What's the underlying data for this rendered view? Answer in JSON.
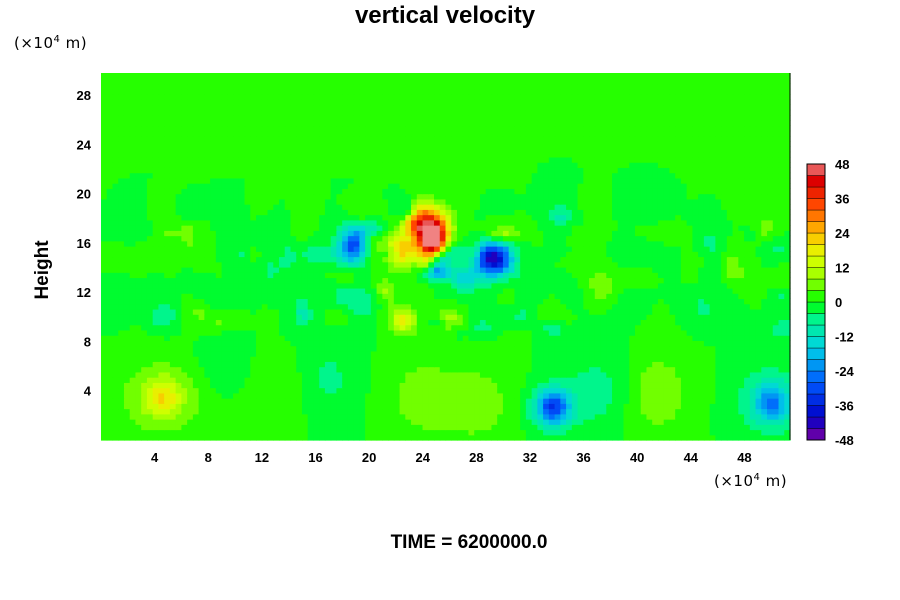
{
  "chart_data": {
    "type": "heatmap",
    "title": "vertical velocity",
    "xlabel": "",
    "ylabel": "Height",
    "x_unit": {
      "prefix": "(×10",
      "exp": "4",
      "suffix": " m)"
    },
    "y_unit": {
      "prefix": "(×10",
      "exp": "4",
      "suffix": " m)"
    },
    "xlim": [
      0,
      51.4
    ],
    "ylim": [
      0,
      29.8
    ],
    "xticks": [
      "4",
      "8",
      "12",
      "16",
      "20",
      "24",
      "28",
      "32",
      "36",
      "40",
      "44",
      "48"
    ],
    "xtick_values": [
      4,
      8,
      12,
      16,
      20,
      24,
      28,
      32,
      36,
      40,
      44,
      48
    ],
    "yticks": [
      "4",
      "8",
      "12",
      "16",
      "20",
      "24",
      "28"
    ],
    "ytick_values": [
      4,
      8,
      12,
      16,
      20,
      24,
      28
    ],
    "colorbar": {
      "min": -48,
      "max": 48,
      "step": 4,
      "tick_labels": [
        "48",
        "36",
        "24",
        "12",
        "0",
        "-12",
        "-24",
        "-36",
        "-48"
      ],
      "tick_values": [
        48,
        36,
        24,
        12,
        0,
        -12,
        -24,
        -36,
        -48
      ]
    },
    "field_features": [
      {
        "x": 24.7,
        "y": 16.4,
        "w_peak": 44,
        "note": "strong updraft core"
      },
      {
        "x": 24.0,
        "y": 17.8,
        "w_peak": 40
      },
      {
        "x": 22.4,
        "y": 15.5,
        "w_peak": 26
      },
      {
        "x": 29.5,
        "y": 14.8,
        "w_peak": -38,
        "note": "downdraft"
      },
      {
        "x": 18.8,
        "y": 15.8,
        "w_peak": -30
      },
      {
        "x": 4.6,
        "y": 3.5,
        "w_peak": 12
      },
      {
        "x": 33.7,
        "y": 2.7,
        "w_peak": -18
      },
      {
        "x": 50.0,
        "y": 3.0,
        "w_peak": -14
      }
    ]
  },
  "footer": {
    "time_label": "TIME = 6200000.0"
  }
}
